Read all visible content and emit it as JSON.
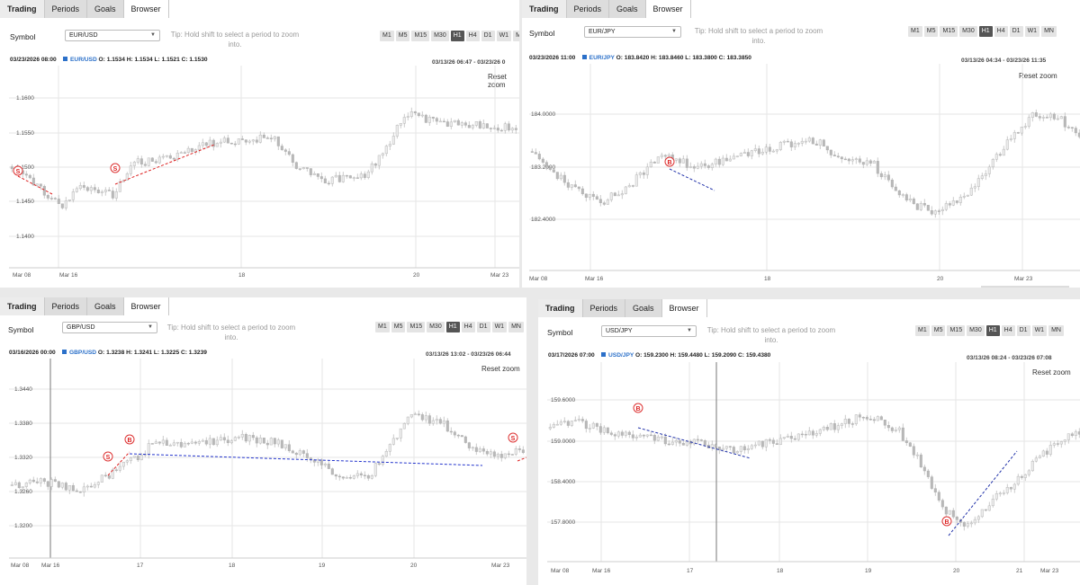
{
  "ui": {
    "tabs": [
      "Trading",
      "Periods",
      "Goals",
      "Browser"
    ],
    "symbol_label": "Symbol",
    "tip": "Tip: Hold shift to select a period to zoom into.",
    "timeframes": [
      "M1",
      "M5",
      "M15",
      "M30",
      "H1",
      "H4",
      "D1",
      "W1",
      "MN"
    ],
    "active_timeframe": "H1",
    "reset_zoom": "Reset zoom"
  },
  "panels": [
    {
      "symbol": "EUR/USD",
      "cursor_time": "03/23/2026 08:00",
      "pair": "EUR/USD",
      "o": "1.1534",
      "h": "1.1534",
      "l": "1.1521",
      "c": "1.1530",
      "range": "03/13/26 06:47 - 03/23/26 0",
      "price_labels": [
        "1.1600",
        "1.1550",
        "1.1500",
        "1.1450",
        "1.1400"
      ],
      "date_labels": [
        "Mar 08",
        "Mar 16",
        "18",
        "20",
        "Mar 23"
      ],
      "markers": [
        "S",
        "S"
      ]
    },
    {
      "symbol": "EUR/JPY",
      "cursor_time": "03/23/2026 11:00",
      "pair": "EUR/JPY",
      "o": "183.8420",
      "h": "183.8460",
      "l": "183.3800",
      "c": "183.3850",
      "range": "03/13/26 04:34 - 03/23/26 11:35",
      "price_labels": [
        "184.0000",
        "183.2000",
        "182.4000"
      ],
      "date_labels": [
        "Mar 08",
        "Mar 16",
        "18",
        "20",
        "Mar 23"
      ],
      "markers": [
        "B"
      ]
    },
    {
      "symbol": "GBP/USD",
      "cursor_time": "03/16/2026 00:00",
      "pair": "GBP/USD",
      "o": "1.3238",
      "h": "1.3241",
      "l": "1.3225",
      "c": "1.3239",
      "range": "03/13/26 13:02 - 03/23/26 06:44",
      "price_labels": [
        "1.3440",
        "1.3380",
        "1.3320",
        "1.3260",
        "1.3200"
      ],
      "date_labels": [
        "Mar 08",
        "Mar 16",
        "17",
        "18",
        "19",
        "20",
        "Mar 23"
      ],
      "markers": [
        "S",
        "B",
        "S"
      ]
    },
    {
      "symbol": "USD/JPY",
      "cursor_time": "03/17/2026 07:00",
      "pair": "USD/JPY",
      "o": "159.2300",
      "h": "159.4480",
      "l": "159.2090",
      "c": "159.4380",
      "range": "03/13/26 08:24 - 03/23/26 07:08",
      "price_labels": [
        "159.6000",
        "159.0000",
        "158.4000",
        "157.8000"
      ],
      "date_labels": [
        "Mar 08",
        "Mar 16",
        "17",
        "18",
        "19",
        "20",
        "21",
        "Mar 23"
      ],
      "markers": [
        "B",
        "B"
      ]
    }
  ]
}
